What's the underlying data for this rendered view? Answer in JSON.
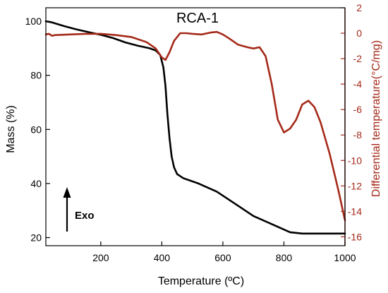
{
  "chart_data": {
    "type": "line",
    "title": "RCA-1",
    "xlabel": "Temperature (ºC)",
    "ylabel": "Mass (%)",
    "y2label": "Differential temperature(°C/mg)",
    "xlim": [
      20,
      1000
    ],
    "ylim": [
      17,
      105
    ],
    "y2lim": [
      -16.7,
      2
    ],
    "x_ticks": [
      200,
      400,
      600,
      800,
      1000
    ],
    "y_ticks": [
      20,
      40,
      60,
      80,
      100
    ],
    "y2_ticks": [
      2,
      0,
      -2,
      -4,
      -6,
      -8,
      -10,
      -12,
      -14,
      -16
    ],
    "grid": false,
    "annotation": "Exo",
    "series": [
      {
        "axis": "left",
        "color": "#000000",
        "points": [
          [
            20,
            100.0
          ],
          [
            40,
            99.6
          ],
          [
            80,
            98.2
          ],
          [
            120,
            97.0
          ],
          [
            160,
            96.0
          ],
          [
            200,
            95.0
          ],
          [
            240,
            93.8
          ],
          [
            280,
            92.2
          ],
          [
            320,
            91.0
          ],
          [
            360,
            90.0
          ],
          [
            380,
            89.2
          ],
          [
            395,
            87.5
          ],
          [
            405,
            83.0
          ],
          [
            412,
            76.0
          ],
          [
            418,
            66.0
          ],
          [
            425,
            57.0
          ],
          [
            432,
            50.0
          ],
          [
            440,
            46.0
          ],
          [
            450,
            43.5
          ],
          [
            470,
            42.0
          ],
          [
            520,
            40.0
          ],
          [
            580,
            37.0
          ],
          [
            640,
            32.5
          ],
          [
            700,
            28.0
          ],
          [
            760,
            25.0
          ],
          [
            820,
            22.0
          ],
          [
            860,
            21.5
          ],
          [
            940,
            21.5
          ],
          [
            1000,
            21.5
          ]
        ]
      },
      {
        "axis": "right",
        "color": "#a52a1a",
        "points": [
          [
            20,
            -0.1
          ],
          [
            30,
            -0.05
          ],
          [
            40,
            -0.2
          ],
          [
            50,
            -0.15
          ],
          [
            100,
            -0.1
          ],
          [
            150,
            -0.05
          ],
          [
            200,
            -0.05
          ],
          [
            250,
            -0.15
          ],
          [
            300,
            -0.3
          ],
          [
            350,
            -0.7
          ],
          [
            380,
            -1.2
          ],
          [
            400,
            -1.9
          ],
          [
            412,
            -2.1
          ],
          [
            425,
            -1.5
          ],
          [
            440,
            -0.6
          ],
          [
            460,
            0.0
          ],
          [
            480,
            0.0
          ],
          [
            500,
            -0.05
          ],
          [
            530,
            -0.1
          ],
          [
            560,
            0.05
          ],
          [
            580,
            0.1
          ],
          [
            600,
            -0.1
          ],
          [
            620,
            -0.4
          ],
          [
            650,
            -0.9
          ],
          [
            680,
            -1.1
          ],
          [
            700,
            -1.2
          ],
          [
            720,
            -1.1
          ],
          [
            740,
            -1.8
          ],
          [
            760,
            -4.0
          ],
          [
            780,
            -6.8
          ],
          [
            800,
            -7.8
          ],
          [
            820,
            -7.5
          ],
          [
            840,
            -6.8
          ],
          [
            860,
            -5.6
          ],
          [
            880,
            -5.3
          ],
          [
            900,
            -5.8
          ],
          [
            920,
            -7.0
          ],
          [
            950,
            -9.5
          ],
          [
            980,
            -12.5
          ],
          [
            1000,
            -14.7
          ]
        ]
      }
    ]
  }
}
